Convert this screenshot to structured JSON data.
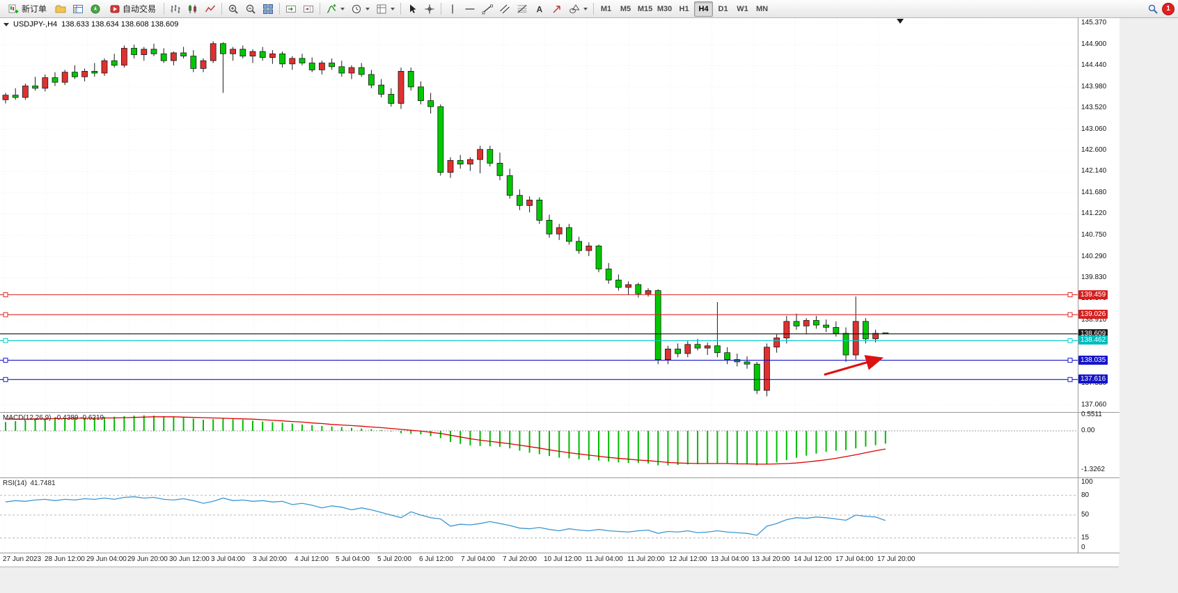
{
  "toolbar": {
    "new_order": "新订单",
    "autotrade": "自动交易",
    "timeframes": [
      "M1",
      "M5",
      "M15",
      "M30",
      "H1",
      "H4",
      "D1",
      "W1",
      "MN"
    ],
    "active_timeframe": "H4",
    "notification_count": "1"
  },
  "chart_header": {
    "symbol": "USDJPY-,H4",
    "ohlc": "138.633 138.634 138.608 138.609"
  },
  "chart_data": {
    "type": "candlestick",
    "symbol": "USDJPY-",
    "timeframe": "H4",
    "colors": {
      "bull": "#e03030",
      "bear": "#00c800",
      "wick": "#1a1a1a",
      "macd_hist": "#00bb00",
      "macd_signal": "#dd0000",
      "rsi_line": "#3b97d3",
      "grid": "#efecec"
    },
    "price_axis": {
      "max": 145.37,
      "min": 137.06,
      "labels": [
        "145.370",
        "144.900",
        "144.440",
        "143.980",
        "143.520",
        "143.060",
        "142.600",
        "142.140",
        "141.680",
        "141.220",
        "140.750",
        "140.290",
        "139.830",
        "139.370",
        "138.910",
        "138.450",
        "137.990",
        "137.530",
        "137.060"
      ]
    },
    "hlines": [
      {
        "price": 139.459,
        "label": "139.459",
        "color": "#e02525",
        "badge_bg": "#d42020"
      },
      {
        "price": 139.026,
        "label": "139.026",
        "color": "#e02525",
        "badge_bg": "#d42020"
      },
      {
        "price": 138.609,
        "label": "138.609",
        "color": "#111111",
        "badge_bg": "#1a1a1a",
        "endpoints": false
      },
      {
        "price": 138.462,
        "label": "138.462",
        "color": "#00cccc",
        "badge_bg": "#00bdbd"
      },
      {
        "price": 138.035,
        "label": "138.035",
        "color": "#1414cc",
        "badge_bg": "#1414c8"
      },
      {
        "price": 137.616,
        "label": "137.616",
        "color": "#1414cc",
        "badge_bg": "#1414c8"
      }
    ],
    "candles": [
      [
        143.7,
        143.85,
        143.62,
        143.8
      ],
      [
        143.8,
        143.95,
        143.7,
        143.75
      ],
      [
        143.75,
        144.05,
        143.7,
        144.0
      ],
      [
        144.0,
        144.2,
        143.9,
        143.95
      ],
      [
        143.95,
        144.25,
        143.88,
        144.18
      ],
      [
        144.18,
        144.3,
        144.0,
        144.08
      ],
      [
        144.08,
        144.35,
        144.02,
        144.3
      ],
      [
        144.3,
        144.45,
        144.15,
        144.2
      ],
      [
        144.2,
        144.38,
        144.1,
        144.32
      ],
      [
        144.32,
        144.5,
        144.2,
        144.28
      ],
      [
        144.28,
        144.6,
        144.22,
        144.55
      ],
      [
        144.55,
        144.7,
        144.4,
        144.45
      ],
      [
        144.45,
        144.88,
        144.4,
        144.82
      ],
      [
        144.82,
        144.9,
        144.6,
        144.68
      ],
      [
        144.68,
        144.85,
        144.55,
        144.8
      ],
      [
        144.8,
        144.92,
        144.65,
        144.7
      ],
      [
        144.7,
        144.82,
        144.5,
        144.55
      ],
      [
        144.55,
        144.75,
        144.45,
        144.72
      ],
      [
        144.72,
        144.85,
        144.6,
        144.65
      ],
      [
        144.65,
        144.78,
        144.3,
        144.38
      ],
      [
        144.38,
        144.6,
        144.3,
        144.55
      ],
      [
        144.55,
        144.97,
        144.5,
        144.92
      ],
      [
        144.92,
        144.95,
        143.85,
        144.7
      ],
      [
        144.7,
        144.85,
        144.55,
        144.8
      ],
      [
        144.8,
        144.88,
        144.6,
        144.65
      ],
      [
        144.65,
        144.8,
        144.5,
        144.75
      ],
      [
        144.75,
        144.85,
        144.55,
        144.62
      ],
      [
        144.62,
        144.78,
        144.48,
        144.7
      ],
      [
        144.7,
        144.75,
        144.4,
        144.48
      ],
      [
        144.48,
        144.65,
        144.35,
        144.6
      ],
      [
        144.6,
        144.7,
        144.45,
        144.5
      ],
      [
        144.5,
        144.62,
        144.3,
        144.35
      ],
      [
        144.35,
        144.55,
        144.25,
        144.5
      ],
      [
        144.5,
        144.6,
        144.35,
        144.42
      ],
      [
        144.42,
        144.55,
        144.2,
        144.28
      ],
      [
        144.28,
        144.45,
        144.15,
        144.4
      ],
      [
        144.4,
        144.5,
        144.2,
        144.25
      ],
      [
        144.25,
        144.35,
        143.95,
        144.02
      ],
      [
        144.02,
        144.15,
        143.75,
        143.82
      ],
      [
        143.82,
        143.95,
        143.55,
        143.62
      ],
      [
        143.62,
        144.4,
        143.5,
        144.32
      ],
      [
        144.32,
        144.4,
        143.9,
        143.98
      ],
      [
        143.98,
        144.1,
        143.6,
        143.68
      ],
      [
        143.68,
        143.85,
        143.4,
        143.55
      ],
      [
        143.55,
        143.6,
        142.05,
        142.12
      ],
      [
        142.12,
        142.45,
        142.0,
        142.38
      ],
      [
        142.38,
        142.5,
        142.2,
        142.3
      ],
      [
        142.3,
        142.45,
        142.15,
        142.4
      ],
      [
        142.4,
        142.7,
        142.1,
        142.62
      ],
      [
        142.62,
        142.7,
        142.25,
        142.32
      ],
      [
        142.32,
        142.55,
        141.95,
        142.05
      ],
      [
        142.05,
        142.2,
        141.55,
        141.62
      ],
      [
        141.62,
        141.75,
        141.3,
        141.4
      ],
      [
        141.4,
        141.6,
        141.25,
        141.52
      ],
      [
        141.52,
        141.58,
        141.0,
        141.08
      ],
      [
        141.08,
        141.2,
        140.7,
        140.78
      ],
      [
        140.78,
        141.0,
        140.65,
        140.92
      ],
      [
        140.92,
        141.0,
        140.55,
        140.62
      ],
      [
        140.62,
        140.72,
        140.35,
        140.42
      ],
      [
        140.42,
        140.6,
        140.3,
        140.52
      ],
      [
        140.52,
        140.55,
        139.95,
        140.02
      ],
      [
        140.02,
        140.15,
        139.7,
        139.78
      ],
      [
        139.78,
        139.9,
        139.55,
        139.62
      ],
      [
        139.62,
        139.75,
        139.45,
        139.68
      ],
      [
        139.68,
        139.72,
        139.4,
        139.48
      ],
      [
        139.48,
        139.6,
        139.42,
        139.55
      ],
      [
        139.55,
        139.58,
        137.95,
        138.05
      ],
      [
        138.05,
        138.35,
        137.95,
        138.28
      ],
      [
        138.28,
        138.4,
        138.1,
        138.18
      ],
      [
        138.18,
        138.45,
        138.1,
        138.38
      ],
      [
        138.38,
        138.5,
        138.25,
        138.3
      ],
      [
        138.3,
        138.42,
        138.15,
        138.35
      ],
      [
        138.35,
        139.3,
        138.1,
        138.2
      ],
      [
        138.2,
        138.32,
        137.95,
        138.05
      ],
      [
        138.05,
        138.18,
        137.9,
        138.0
      ],
      [
        138.0,
        138.12,
        137.85,
        137.95
      ],
      [
        137.95,
        138.0,
        137.3,
        137.38
      ],
      [
        137.38,
        138.4,
        137.25,
        138.32
      ],
      [
        138.32,
        138.6,
        138.2,
        138.52
      ],
      [
        138.52,
        139.0,
        138.4,
        138.88
      ],
      [
        138.88,
        139.05,
        138.7,
        138.78
      ],
      [
        138.78,
        138.95,
        138.6,
        138.9
      ],
      [
        138.9,
        139.0,
        138.72,
        138.8
      ],
      [
        138.8,
        138.92,
        138.65,
        138.75
      ],
      [
        138.75,
        138.88,
        138.55,
        138.62
      ],
      [
        138.62,
        138.75,
        138.0,
        138.15
      ],
      [
        138.15,
        139.42,
        138.05,
        138.88
      ],
      [
        138.88,
        138.95,
        138.4,
        138.5
      ],
      [
        138.5,
        138.7,
        138.42,
        138.62
      ],
      [
        138.633,
        138.634,
        138.608,
        138.609
      ]
    ],
    "macd": {
      "label": "MACD(12,26,9)",
      "values": "-0.4389 -0.6219",
      "axis": [
        {
          "text": "0.5511",
          "v": 0.5511
        },
        {
          "text": "0.00",
          "v": 0
        },
        {
          "text": "-1.3262",
          "v": -1.3262
        }
      ],
      "hist": [
        0.3,
        0.33,
        0.36,
        0.4,
        0.42,
        0.45,
        0.44,
        0.46,
        0.43,
        0.45,
        0.47,
        0.48,
        0.5,
        0.52,
        0.53,
        0.52,
        0.5,
        0.47,
        0.45,
        0.42,
        0.38,
        0.4,
        0.42,
        0.4,
        0.38,
        0.35,
        0.32,
        0.3,
        0.28,
        0.25,
        0.22,
        0.2,
        0.17,
        0.15,
        0.13,
        0.1,
        0.08,
        0.06,
        0.03,
        -0.02,
        -0.08,
        -0.1,
        -0.12,
        -0.18,
        -0.25,
        -0.38,
        -0.45,
        -0.5,
        -0.52,
        -0.53,
        -0.55,
        -0.6,
        -0.68,
        -0.75,
        -0.8,
        -0.86,
        -0.92,
        -0.94,
        -0.97,
        -1.0,
        -1.02,
        -1.05,
        -1.08,
        -1.1,
        -1.1,
        -1.12,
        -1.18,
        -1.18,
        -1.17,
        -1.15,
        -1.14,
        -1.12,
        -1.12,
        -1.13,
        -1.14,
        -1.15,
        -1.18,
        -1.15,
        -1.08,
        -1.0,
        -0.92,
        -0.85,
        -0.78,
        -0.72,
        -0.68,
        -0.66,
        -0.6,
        -0.54,
        -0.49,
        -0.4389
      ],
      "signal": [
        0.4,
        0.4,
        0.4,
        0.41,
        0.41,
        0.42,
        0.42,
        0.43,
        0.43,
        0.43,
        0.44,
        0.44,
        0.45,
        0.46,
        0.47,
        0.48,
        0.48,
        0.48,
        0.47,
        0.46,
        0.45,
        0.44,
        0.43,
        0.42,
        0.41,
        0.4,
        0.38,
        0.36,
        0.34,
        0.32,
        0.3,
        0.27,
        0.25,
        0.22,
        0.2,
        0.18,
        0.16,
        0.13,
        0.11,
        0.08,
        0.05,
        0.02,
        -0.01,
        -0.05,
        -0.09,
        -0.15,
        -0.21,
        -0.27,
        -0.32,
        -0.36,
        -0.4,
        -0.44,
        -0.49,
        -0.54,
        -0.59,
        -0.65,
        -0.7,
        -0.75,
        -0.79,
        -0.83,
        -0.87,
        -0.91,
        -0.94,
        -0.97,
        -1.0,
        -1.02,
        -1.05,
        -1.08,
        -1.1,
        -1.11,
        -1.12,
        -1.12,
        -1.12,
        -1.12,
        -1.13,
        -1.13,
        -1.14,
        -1.14,
        -1.13,
        -1.12,
        -1.1,
        -1.07,
        -1.03,
        -0.99,
        -0.94,
        -0.88,
        -0.82,
        -0.75,
        -0.68,
        -0.6219
      ]
    },
    "rsi": {
      "label": "RSI(14)",
      "value": "41.7481",
      "axis": [
        {
          "text": "100",
          "v": 100
        },
        {
          "text": "80",
          "v": 80
        },
        {
          "text": "50",
          "v": 50
        },
        {
          "text": "15",
          "v": 15
        },
        {
          "text": "0",
          "v": 0
        }
      ],
      "levels": [
        80,
        50,
        15
      ],
      "values": [
        70,
        72,
        71,
        73,
        74,
        72,
        74,
        73,
        75,
        74,
        76,
        74,
        77,
        78,
        76,
        77,
        74,
        73,
        75,
        72,
        68,
        71,
        76,
        72,
        73,
        71,
        72,
        70,
        71,
        66,
        68,
        65,
        61,
        64,
        62,
        58,
        61,
        58,
        54,
        50,
        46,
        55,
        50,
        46,
        44,
        33,
        36,
        35,
        37,
        40,
        37,
        34,
        30,
        29,
        31,
        28,
        26,
        29,
        27,
        26,
        28,
        26,
        25,
        24,
        26,
        27,
        22,
        25,
        24,
        26,
        23,
        24,
        26,
        24,
        23,
        22,
        19,
        33,
        37,
        43,
        46,
        45,
        47,
        46,
        44,
        42,
        50,
        48,
        47,
        41.75
      ]
    },
    "time_axis": [
      "27 Jun 2023",
      "28 Jun 12:00",
      "29 Jun 04:00",
      "29 Jun 20:00",
      "30 Jun 12:00",
      "3 Jul 04:00",
      "3 Jul 20:00",
      "4 Jul 12:00",
      "5 Jul 04:00",
      "5 Jul 20:00",
      "6 Jul 12:00",
      "7 Jul 04:00",
      "7 Jul 20:00",
      "10 Jul 12:00",
      "11 Jul 04:00",
      "11 Jul 20:00",
      "12 Jul 12:00",
      "13 Jul 04:00",
      "13 Jul 20:00",
      "14 Jul 12:00",
      "17 Jul 04:00",
      "17 Jul 20:00"
    ],
    "annotations": [
      {
        "type": "arrow",
        "x1_index": 82.8,
        "price1": 137.72,
        "x2_index": 88.6,
        "price2": 138.08,
        "color": "#dd1111"
      }
    ]
  }
}
